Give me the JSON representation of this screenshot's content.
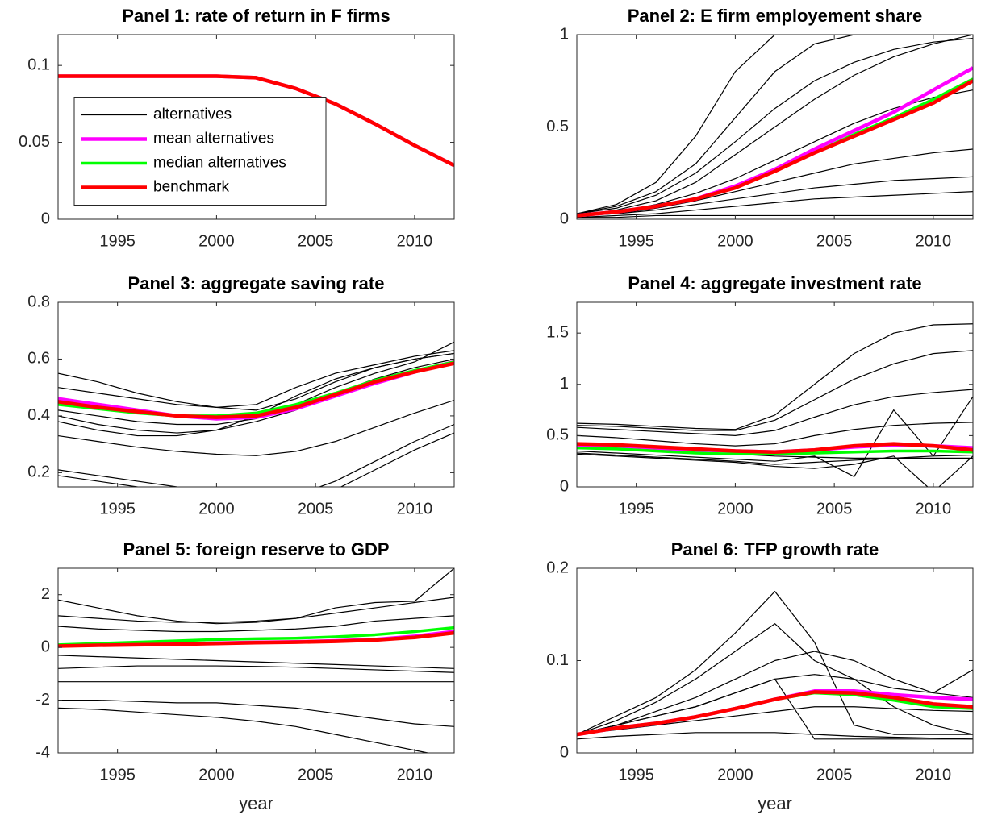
{
  "chart_data": [
    {
      "type": "line",
      "title": "Panel 1: rate of return in F firms",
      "x": [
        1992,
        1994,
        1996,
        1998,
        2000,
        2002,
        2004,
        2006,
        2008,
        2010,
        2012
      ],
      "xlim": [
        1992,
        2012
      ],
      "xticks": [
        1995,
        2000,
        2005,
        2010
      ],
      "ylim": [
        0,
        0.12
      ],
      "yticks": [
        0,
        0.05,
        0.1
      ],
      "legend": "west",
      "series": [
        {
          "name": "alternatives",
          "color": "#000000",
          "lines": [
            [
              0.093,
              0.093,
              0.093,
              0.093,
              0.093,
              0.092,
              0.085,
              0.075,
              0.062,
              0.048,
              0.035
            ]
          ]
        },
        {
          "name": "mean alternatives",
          "color": "#ff00ff",
          "values": [
            0.093,
            0.093,
            0.093,
            0.093,
            0.093,
            0.092,
            0.085,
            0.075,
            0.062,
            0.048,
            0.035
          ]
        },
        {
          "name": "median alternatives",
          "color": "#00ff00",
          "values": [
            0.093,
            0.093,
            0.093,
            0.093,
            0.093,
            0.092,
            0.085,
            0.075,
            0.062,
            0.048,
            0.035
          ]
        },
        {
          "name": "benchmark",
          "color": "#ff0000",
          "values": [
            0.093,
            0.093,
            0.093,
            0.093,
            0.093,
            0.092,
            0.085,
            0.075,
            0.062,
            0.048,
            0.035
          ]
        }
      ]
    },
    {
      "type": "line",
      "title": "Panel 2: E firm employement share",
      "x": [
        1992,
        1994,
        1996,
        1998,
        2000,
        2002,
        2004,
        2006,
        2008,
        2010,
        2012
      ],
      "xlim": [
        1992,
        2012
      ],
      "xticks": [
        1995,
        2000,
        2005,
        2010
      ],
      "ylim": [
        0,
        1
      ],
      "yticks": [
        0,
        0.5,
        1
      ],
      "series": [
        {
          "color": "#000000",
          "lines": [
            [
              0.03,
              0.08,
              0.2,
              0.45,
              0.8,
              1,
              1,
              1,
              1,
              1,
              1
            ],
            [
              0.03,
              0.07,
              0.15,
              0.3,
              0.55,
              0.8,
              0.95,
              1,
              1,
              1,
              1
            ],
            [
              0.03,
              0.06,
              0.13,
              0.25,
              0.42,
              0.6,
              0.75,
              0.85,
              0.92,
              0.96,
              0.98
            ],
            [
              0.02,
              0.05,
              0.1,
              0.2,
              0.35,
              0.5,
              0.65,
              0.78,
              0.88,
              0.95,
              1
            ],
            [
              0.02,
              0.04,
              0.08,
              0.14,
              0.22,
              0.32,
              0.42,
              0.52,
              0.6,
              0.66,
              0.7
            ],
            [
              0.02,
              0.03,
              0.06,
              0.1,
              0.15,
              0.2,
              0.25,
              0.3,
              0.33,
              0.36,
              0.38
            ],
            [
              0.02,
              0.03,
              0.05,
              0.08,
              0.11,
              0.14,
              0.17,
              0.19,
              0.21,
              0.22,
              0.23
            ],
            [
              0.01,
              0.02,
              0.03,
              0.05,
              0.07,
              0.09,
              0.11,
              0.12,
              0.13,
              0.14,
              0.15
            ],
            [
              0.01,
              0.01,
              0.02,
              0.02,
              0.02,
              0.02,
              0.02,
              0.02,
              0.02,
              0.02,
              0.02
            ]
          ]
        },
        {
          "color": "#ff00ff",
          "values": [
            0.02,
            0.04,
            0.07,
            0.11,
            0.18,
            0.27,
            0.38,
            0.48,
            0.58,
            0.7,
            0.82
          ]
        },
        {
          "color": "#00ff00",
          "values": [
            0.02,
            0.04,
            0.07,
            0.11,
            0.17,
            0.26,
            0.36,
            0.46,
            0.55,
            0.65,
            0.76
          ]
        },
        {
          "color": "#ff0000",
          "values": [
            0.02,
            0.04,
            0.07,
            0.11,
            0.17,
            0.26,
            0.36,
            0.45,
            0.54,
            0.63,
            0.75
          ]
        }
      ]
    },
    {
      "type": "line",
      "title": "Panel 3: aggregate saving rate",
      "x": [
        1992,
        1994,
        1996,
        1998,
        2000,
        2002,
        2004,
        2006,
        2008,
        2010,
        2012
      ],
      "xlim": [
        1992,
        2012
      ],
      "xticks": [
        1995,
        2000,
        2005,
        2010
      ],
      "ylim": [
        0.15,
        0.8
      ],
      "yticks": [
        0.2,
        0.4,
        0.6,
        0.8
      ],
      "series": [
        {
          "color": "#000000",
          "lines": [
            [
              0.55,
              0.52,
              0.48,
              0.45,
              0.43,
              0.42,
              0.46,
              0.52,
              0.57,
              0.6,
              0.62
            ],
            [
              0.5,
              0.48,
              0.46,
              0.44,
              0.43,
              0.44,
              0.5,
              0.55,
              0.58,
              0.61,
              0.63
            ],
            [
              0.4,
              0.37,
              0.35,
              0.34,
              0.35,
              0.4,
              0.47,
              0.53,
              0.57,
              0.6,
              0.62
            ],
            [
              0.38,
              0.35,
              0.33,
              0.33,
              0.35,
              0.38,
              0.42,
              0.48,
              0.53,
              0.57,
              0.6
            ],
            [
              0.42,
              0.4,
              0.38,
              0.37,
              0.37,
              0.39,
              0.44,
              0.5,
              0.55,
              0.59,
              0.66
            ],
            [
              0.33,
              0.31,
              0.29,
              0.275,
              0.265,
              0.26,
              0.275,
              0.31,
              0.36,
              0.41,
              0.455
            ],
            [
              0.21,
              0.19,
              0.17,
              0.15,
              0.13,
              0.11,
              0.12,
              0.17,
              0.24,
              0.31,
              0.37
            ],
            [
              0.19,
              0.17,
              0.15,
              0.13,
              0.11,
              0.09,
              0.1,
              0.14,
              0.21,
              0.28,
              0.34
            ]
          ]
        },
        {
          "color": "#ff00ff",
          "values": [
            0.46,
            0.44,
            0.42,
            0.4,
            0.39,
            0.395,
            0.425,
            0.47,
            0.515,
            0.555,
            0.59
          ]
        },
        {
          "color": "#00ff00",
          "values": [
            0.44,
            0.425,
            0.41,
            0.4,
            0.4,
            0.41,
            0.44,
            0.48,
            0.525,
            0.56,
            0.59
          ]
        },
        {
          "color": "#ff0000",
          "values": [
            0.45,
            0.43,
            0.415,
            0.4,
            0.395,
            0.4,
            0.43,
            0.475,
            0.52,
            0.555,
            0.585
          ]
        }
      ]
    },
    {
      "type": "line",
      "title": "Panel 4: aggregate investment rate",
      "x": [
        1992,
        1994,
        1996,
        1998,
        2000,
        2002,
        2004,
        2006,
        2008,
        2010,
        2012
      ],
      "xlim": [
        1992,
        2012
      ],
      "xticks": [
        1995,
        2000,
        2005,
        2010
      ],
      "ylim": [
        0,
        1.8
      ],
      "yticks": [
        0,
        0.5,
        1,
        1.5
      ],
      "series": [
        {
          "color": "#000000",
          "lines": [
            [
              0.62,
              0.61,
              0.59,
              0.57,
              0.56,
              0.7,
              1.0,
              1.3,
              1.5,
              1.58,
              1.59
            ],
            [
              0.6,
              0.59,
              0.57,
              0.55,
              0.55,
              0.65,
              0.85,
              1.05,
              1.2,
              1.3,
              1.33
            ],
            [
              0.58,
              0.56,
              0.54,
              0.52,
              0.5,
              0.55,
              0.68,
              0.8,
              0.88,
              0.92,
              0.95
            ],
            [
              0.5,
              0.48,
              0.45,
              0.42,
              0.4,
              0.42,
              0.5,
              0.56,
              0.6,
              0.62,
              0.63
            ],
            [
              0.35,
              0.33,
              0.31,
              0.29,
              0.27,
              0.25,
              0.3,
              0.1,
              0.75,
              0.3,
              0.88
            ],
            [
              0.33,
              0.31,
              0.29,
              0.27,
              0.25,
              0.22,
              0.24,
              0.26,
              0.28,
              0.3,
              0.31
            ],
            [
              0.32,
              0.3,
              0.28,
              0.26,
              0.24,
              0.2,
              0.18,
              0.22,
              0.3,
              -0.05,
              0.3
            ],
            [
              0.4,
              0.38,
              0.36,
              0.34,
              0.32,
              0.3,
              0.29,
              0.28,
              0.28,
              0.28,
              0.28
            ]
          ]
        },
        {
          "color": "#ff00ff",
          "values": [
            0.41,
            0.4,
            0.38,
            0.36,
            0.35,
            0.34,
            0.36,
            0.39,
            0.41,
            0.4,
            0.38
          ]
        },
        {
          "color": "#00ff00",
          "values": [
            0.38,
            0.37,
            0.35,
            0.33,
            0.32,
            0.32,
            0.33,
            0.34,
            0.35,
            0.35,
            0.34
          ]
        },
        {
          "color": "#ff0000",
          "values": [
            0.42,
            0.41,
            0.39,
            0.37,
            0.35,
            0.34,
            0.36,
            0.4,
            0.42,
            0.4,
            0.36
          ]
        }
      ]
    },
    {
      "type": "line",
      "title": "Panel 5: foreign reserve to GDP",
      "xlabel": "year",
      "x": [
        1992,
        1994,
        1996,
        1998,
        2000,
        2002,
        2004,
        2006,
        2008,
        2010,
        2012
      ],
      "xlim": [
        1992,
        2012
      ],
      "xticks": [
        1995,
        2000,
        2005,
        2010
      ],
      "ylim": [
        -4,
        3
      ],
      "yticks": [
        -4,
        -2,
        0,
        2
      ],
      "series": [
        {
          "color": "#000000",
          "lines": [
            [
              1.8,
              1.5,
              1.2,
              1.0,
              0.9,
              0.95,
              1.1,
              1.3,
              1.5,
              1.7,
              1.9
            ],
            [
              1.2,
              1.1,
              1.0,
              0.95,
              0.95,
              1.0,
              1.1,
              1.5,
              1.7,
              1.75,
              3.0
            ],
            [
              0.8,
              0.7,
              0.65,
              0.6,
              0.6,
              0.65,
              0.7,
              0.8,
              1.0,
              1.1,
              1.2
            ],
            [
              -0.3,
              -0.35,
              -0.4,
              -0.45,
              -0.5,
              -0.55,
              -0.6,
              -0.65,
              -0.7,
              -0.75,
              -0.8
            ],
            [
              -0.8,
              -0.75,
              -0.7,
              -0.7,
              -0.7,
              -0.72,
              -0.75,
              -0.8,
              -0.85,
              -0.9,
              -0.95
            ],
            [
              -1.3,
              -1.3,
              -1.3,
              -1.3,
              -1.3,
              -1.3,
              -1.3,
              -1.3,
              -1.3,
              -1.3,
              -1.3
            ],
            [
              -2.0,
              -2.0,
              -2.05,
              -2.1,
              -2.1,
              -2.2,
              -2.3,
              -2.5,
              -2.7,
              -2.9,
              -3.0
            ],
            [
              -2.3,
              -2.35,
              -2.45,
              -2.55,
              -2.65,
              -2.8,
              -3.0,
              -3.3,
              -3.6,
              -3.9,
              -4.2
            ]
          ]
        },
        {
          "color": "#ff00ff",
          "values": [
            0.06,
            0.09,
            0.11,
            0.13,
            0.16,
            0.19,
            0.21,
            0.25,
            0.3,
            0.42,
            0.6
          ]
        },
        {
          "color": "#00ff00",
          "values": [
            0.1,
            0.15,
            0.2,
            0.25,
            0.3,
            0.33,
            0.35,
            0.4,
            0.48,
            0.6,
            0.75
          ]
        },
        {
          "color": "#ff0000",
          "values": [
            0.05,
            0.08,
            0.1,
            0.12,
            0.15,
            0.18,
            0.2,
            0.23,
            0.28,
            0.38,
            0.55
          ]
        }
      ]
    },
    {
      "type": "line",
      "title": "Panel 6: TFP growth rate",
      "xlabel": "year",
      "x": [
        1992,
        1994,
        1996,
        1998,
        2000,
        2002,
        2004,
        2006,
        2008,
        2010,
        2012
      ],
      "xlim": [
        1992,
        2012
      ],
      "xticks": [
        1995,
        2000,
        2005,
        2010
      ],
      "ylim": [
        0,
        0.2
      ],
      "yticks": [
        0,
        0.1,
        0.2
      ],
      "series": [
        {
          "color": "#000000",
          "lines": [
            [
              0.02,
              0.04,
              0.06,
              0.09,
              0.13,
              0.175,
              0.12,
              0.03,
              0.02,
              0.02,
              0.02
            ],
            [
              0.02,
              0.035,
              0.055,
              0.08,
              0.11,
              0.14,
              0.1,
              0.08,
              0.05,
              0.03,
              0.02
            ],
            [
              0.02,
              0.03,
              0.045,
              0.06,
              0.08,
              0.1,
              0.11,
              0.1,
              0.08,
              0.065,
              0.06
            ],
            [
              0.02,
              0.03,
              0.04,
              0.05,
              0.065,
              0.08,
              0.085,
              0.08,
              0.07,
              0.065,
              0.09
            ],
            [
              0.02,
              0.025,
              0.03,
              0.035,
              0.04,
              0.045,
              0.05,
              0.05,
              0.048,
              0.046,
              0.045
            ],
            [
              0.015,
              0.018,
              0.02,
              0.022,
              0.022,
              0.022,
              0.02,
              0.018,
              0.017,
              0.016,
              0.015
            ],
            [
              0.02,
              0.03,
              0.04,
              0.05,
              0.065,
              0.08,
              0.015,
              0.015,
              0.015,
              0.015,
              0.015
            ]
          ]
        },
        {
          "color": "#ff00ff",
          "values": [
            0.02,
            0.027,
            0.032,
            0.039,
            0.048,
            0.058,
            0.067,
            0.067,
            0.063,
            0.06,
            0.058
          ]
        },
        {
          "color": "#00ff00",
          "values": [
            0.02,
            0.027,
            0.032,
            0.039,
            0.048,
            0.058,
            0.065,
            0.063,
            0.057,
            0.05,
            0.048
          ]
        },
        {
          "color": "#ff0000",
          "values": [
            0.02,
            0.027,
            0.032,
            0.039,
            0.048,
            0.058,
            0.066,
            0.065,
            0.06,
            0.053,
            0.05
          ]
        }
      ]
    }
  ]
}
